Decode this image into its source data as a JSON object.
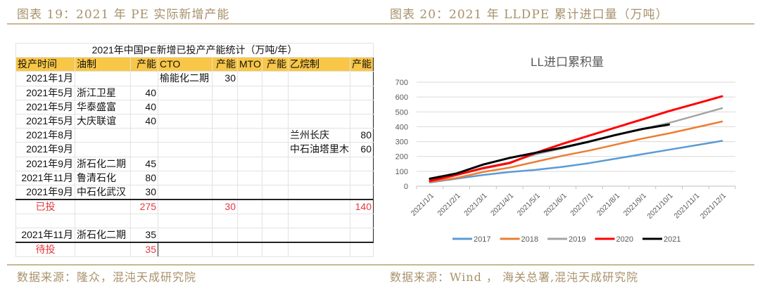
{
  "left_panel": {
    "figure_title": "图表 19：2021 年 PE 实际新增产能",
    "source": "数据来源：隆众，混沌天成研究院",
    "table": {
      "caption": "2021年中国PE新增已投产产能统计（万吨/年）",
      "headers": [
        "投产时间",
        "油制",
        "产能",
        "CTO",
        "产能",
        "MTO",
        "产能",
        "乙烷制",
        "产能"
      ],
      "rows": [
        [
          "2021年1月",
          "",
          "",
          "榆能化二期",
          "30",
          "",
          "",
          "",
          ""
        ],
        [
          "2021年5月",
          "浙江卫星",
          "40",
          "",
          "",
          "",
          "",
          "",
          ""
        ],
        [
          "2021年5月",
          "华泰盛富",
          "40",
          "",
          "",
          "",
          "",
          "",
          ""
        ],
        [
          "2021年5月",
          "大庆联谊",
          "40",
          "",
          "",
          "",
          "",
          "",
          ""
        ],
        [
          "2021年8月",
          "",
          "",
          "",
          "",
          "",
          "",
          "兰州长庆",
          "80"
        ],
        [
          "2021年9月",
          "",
          "",
          "",
          "",
          "",
          "",
          "中石油塔里木",
          "60"
        ],
        [
          "2021年9月",
          "浙石化二期",
          "45",
          "",
          "",
          "",
          "",
          "",
          ""
        ],
        [
          "2021年11月",
          "鲁清石化",
          "80",
          "",
          "",
          "",
          "",
          "",
          ""
        ],
        [
          "2021年9月",
          "中石化武汉",
          "30",
          "",
          "",
          "",
          "",
          "",
          ""
        ]
      ],
      "total_commissioned": {
        "label": "已投",
        "oil": "275",
        "cto": "30",
        "mto": "",
        "ethane": "140"
      },
      "pending_rows": [
        [
          "",
          "",
          "",
          "",
          "",
          "",
          "",
          "",
          ""
        ],
        [
          "2021年11月",
          "浙石化二期",
          "35",
          "",
          "",
          "",
          "",
          "",
          ""
        ]
      ],
      "total_pending": {
        "label": "待投",
        "oil": "35"
      }
    }
  },
  "right_panel": {
    "figure_title": "图表 20：2021 年 LLDPE 累计进口量（万吨）",
    "source": "数据来源：Wind ， 海关总署,混沌天成研究院"
  },
  "chart_data": {
    "type": "line",
    "title": "LL进口累积量",
    "xlabel": "",
    "ylabel": "",
    "ylim": [
      0,
      700
    ],
    "yticks": [
      0,
      100,
      200,
      300,
      400,
      500,
      600,
      700
    ],
    "grid": true,
    "legend_position": "bottom",
    "categories": [
      "2021/1/1",
      "2021/2/1",
      "2021/3/1",
      "2021/4/1",
      "2021/5/1",
      "2021/6/1",
      "2021/7/1",
      "2021/8/1",
      "2021/9/1",
      "2021/10/1",
      "2021/11/1",
      "2021/12/1"
    ],
    "series": [
      {
        "name": "2017",
        "color": "#5b9bd5",
        "values": [
          25,
          50,
          75,
          95,
          110,
          130,
          155,
          185,
          215,
          245,
          275,
          305
        ]
      },
      {
        "name": "2018",
        "color": "#ed7d31",
        "values": [
          30,
          55,
          95,
          125,
          165,
          205,
          240,
          280,
          320,
          355,
          395,
          435
        ]
      },
      {
        "name": "2019",
        "color": "#a5a5a5",
        "values": [
          40,
          75,
          125,
          160,
          215,
          255,
          300,
          345,
          385,
          425,
          475,
          525
        ]
      },
      {
        "name": "2020",
        "color": "#ff0000",
        "values": [
          35,
          75,
          120,
          155,
          225,
          285,
          340,
          395,
          450,
          505,
          555,
          605
        ]
      },
      {
        "name": "2021",
        "color": "#000000",
        "values": [
          50,
          85,
          145,
          190,
          225,
          260,
          300,
          345,
          385,
          415
        ]
      }
    ]
  }
}
